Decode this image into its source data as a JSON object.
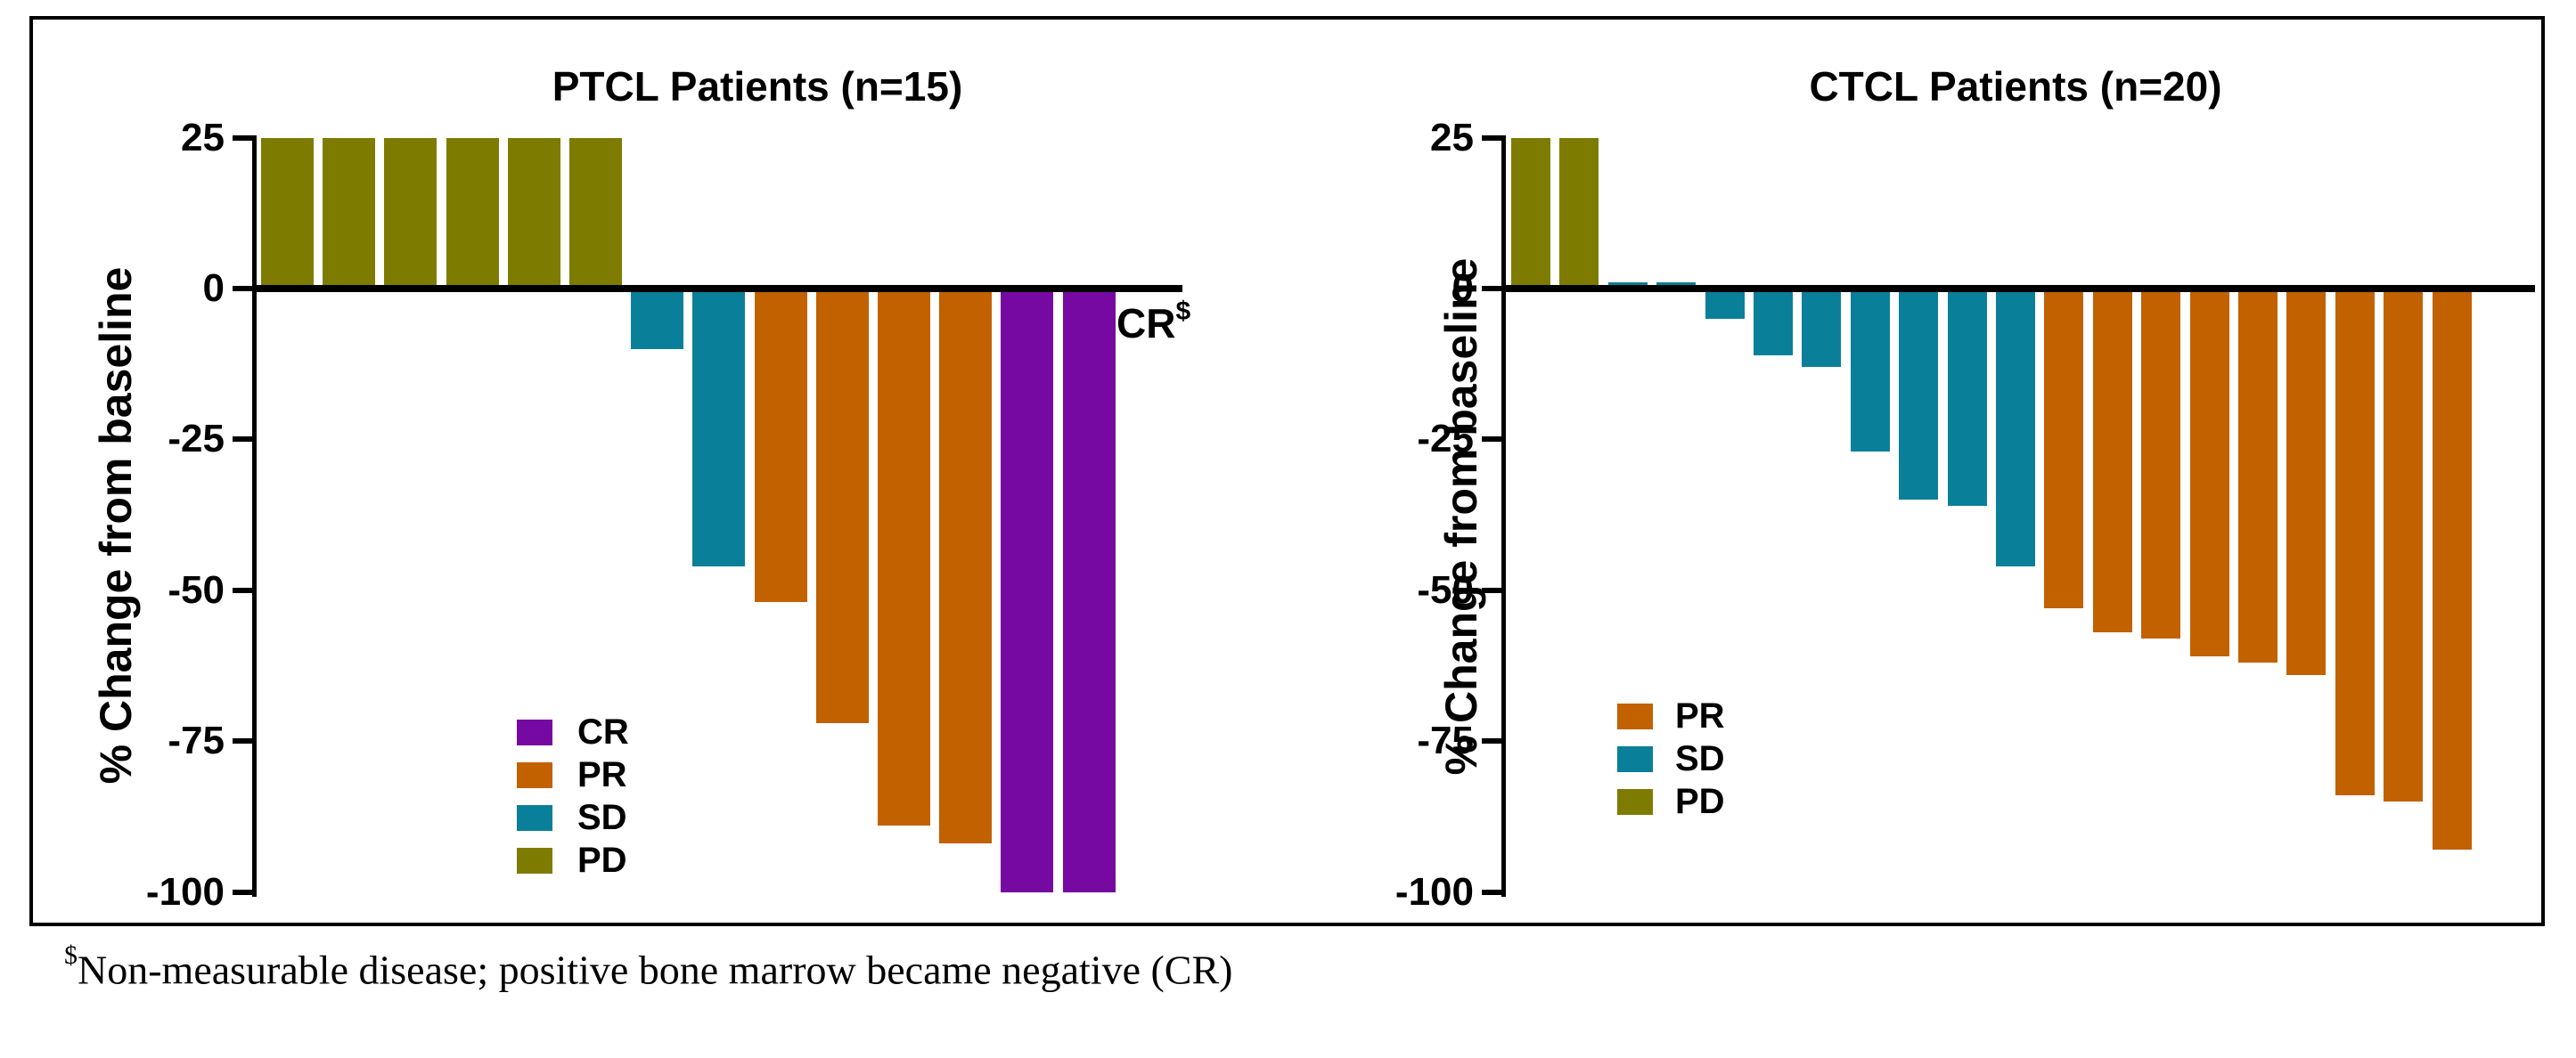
{
  "figure": {
    "description": "Waterfall plots of best response, percent change from baseline"
  },
  "colors": {
    "CR": "#7609A2",
    "PR": "#C26100",
    "SD": "#0A7F99",
    "PD": "#7D7C00",
    "axis": "#000000",
    "background": "#FFFFFF"
  },
  "footnote": {
    "sup": "$",
    "text": "Non-measurable disease; positive bone marrow became negative (CR)"
  },
  "chart_data": [
    {
      "type": "bar",
      "title": "PTCL Patients (n=15)",
      "ylabel": "% Change from baseline",
      "ylim": [
        -100,
        25
      ],
      "yticks": [
        25,
        0,
        -25,
        -50,
        -75,
        -100
      ],
      "grid": false,
      "legend_position": "inside-lower-middle",
      "legend": [
        "CR",
        "PR",
        "SD",
        "PD"
      ],
      "annotation": {
        "text": "CR",
        "sup": "$"
      },
      "bars": [
        {
          "response": "PD",
          "value": 25
        },
        {
          "response": "PD",
          "value": 25
        },
        {
          "response": "PD",
          "value": 25
        },
        {
          "response": "PD",
          "value": 25
        },
        {
          "response": "PD",
          "value": 25
        },
        {
          "response": "PD",
          "value": 25
        },
        {
          "response": "SD",
          "value": -10
        },
        {
          "response": "SD",
          "value": -46
        },
        {
          "response": "PR",
          "value": -52
        },
        {
          "response": "PR",
          "value": -72
        },
        {
          "response": "PR",
          "value": -89
        },
        {
          "response": "PR",
          "value": -92
        },
        {
          "response": "CR",
          "value": -100
        },
        {
          "response": "CR",
          "value": -100
        }
      ]
    },
    {
      "type": "bar",
      "title": "CTCL Patients (n=20)",
      "ylabel": "% Change from baseline",
      "ylim": [
        -100,
        25
      ],
      "yticks": [
        25,
        0,
        -25,
        -50,
        -75,
        -100
      ],
      "grid": false,
      "legend_position": "inside-lower-left",
      "legend": [
        "PR",
        "SD",
        "PD"
      ],
      "bars": [
        {
          "response": "PD",
          "value": 25
        },
        {
          "response": "PD",
          "value": 25
        },
        {
          "response": "SD",
          "value": 1
        },
        {
          "response": "SD",
          "value": 1
        },
        {
          "response": "SD",
          "value": -5
        },
        {
          "response": "SD",
          "value": -11
        },
        {
          "response": "SD",
          "value": -13
        },
        {
          "response": "SD",
          "value": -27
        },
        {
          "response": "SD",
          "value": -35
        },
        {
          "response": "SD",
          "value": -36
        },
        {
          "response": "SD",
          "value": -46
        },
        {
          "response": "PR",
          "value": -53
        },
        {
          "response": "PR",
          "value": -57
        },
        {
          "response": "PR",
          "value": -58
        },
        {
          "response": "PR",
          "value": -61
        },
        {
          "response": "PR",
          "value": -62
        },
        {
          "response": "PR",
          "value": -64
        },
        {
          "response": "PR",
          "value": -84
        },
        {
          "response": "PR",
          "value": -85
        },
        {
          "response": "PR",
          "value": -93
        }
      ]
    }
  ]
}
